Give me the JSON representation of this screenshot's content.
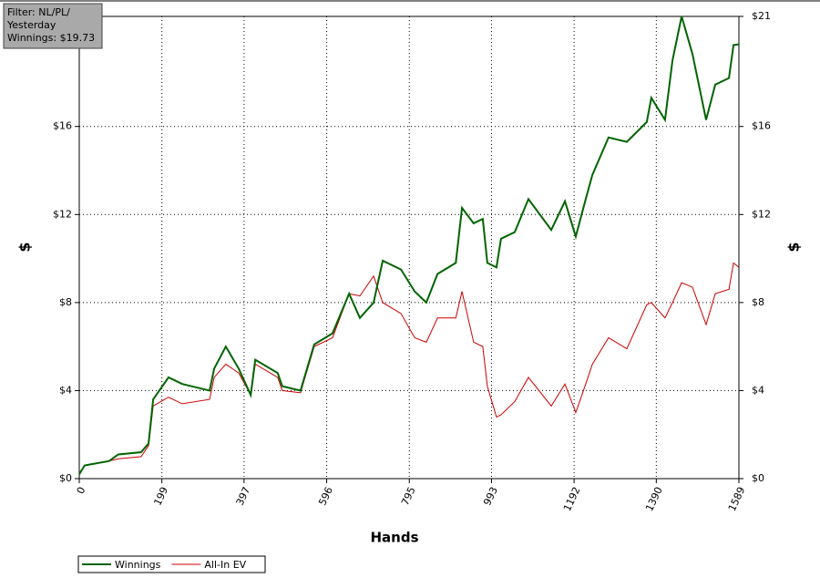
{
  "chart_data": {
    "type": "line",
    "xlabel": "Hands",
    "ylabel": "$",
    "y2label": "$",
    "annotation_lines": [
      "Filter: NL/PL/",
      "Yesterday",
      "Winnings: $19.73"
    ],
    "xlim": [
      0,
      1589
    ],
    "xticks": [
      0,
      199,
      397,
      596,
      795,
      993,
      1192,
      1390,
      1589
    ],
    "ylim": [
      0,
      21
    ],
    "yticks": [
      {
        "value": 0,
        "label": "$0"
      },
      {
        "value": 4,
        "label": "$4"
      },
      {
        "value": 8,
        "label": "$8"
      },
      {
        "value": 12,
        "label": "$12"
      },
      {
        "value": 16,
        "label": "$16"
      },
      {
        "value": 21,
        "label": "$21"
      }
    ],
    "y2lim": [
      0,
      21
    ],
    "y2ticks": [
      {
        "value": 0,
        "label": "$0"
      },
      {
        "value": 4,
        "label": "$4"
      },
      {
        "value": 8,
        "label": "$8"
      },
      {
        "value": 12,
        "label": "$12"
      },
      {
        "value": 16,
        "label": "$16"
      },
      {
        "value": 21,
        "label": "$21"
      }
    ],
    "grid": true,
    "legend": "bottom-left",
    "x": [
      0,
      13,
      72,
      94,
      149,
      167,
      178,
      215,
      248,
      314,
      325,
      353,
      384,
      413,
      424,
      478,
      489,
      533,
      566,
      610,
      650,
      676,
      709,
      731,
      775,
      808,
      836,
      863,
      907,
      922,
      950,
      972,
      983,
      1005,
      1016,
      1049,
      1082,
      1137,
      1170,
      1196,
      1220,
      1236,
      1275,
      1319,
      1367,
      1378,
      1411,
      1429,
      1451,
      1477,
      1510,
      1532,
      1565,
      1576,
      1589
    ],
    "series": [
      {
        "name": "Winnings",
        "color": "#006400",
        "values": [
          0.2,
          0.6,
          0.8,
          1.1,
          1.2,
          1.6,
          3.6,
          4.6,
          4.3,
          4.0,
          5.0,
          6.0,
          5.0,
          3.8,
          5.4,
          4.8,
          4.2,
          4.0,
          6.1,
          6.6,
          8.4,
          7.3,
          8.0,
          9.9,
          9.5,
          8.5,
          8.0,
          9.3,
          9.8,
          12.3,
          11.6,
          11.8,
          9.8,
          9.6,
          10.9,
          11.2,
          12.7,
          11.3,
          12.6,
          11.0,
          12.7,
          13.8,
          15.5,
          15.3,
          16.2,
          17.3,
          16.3,
          19.0,
          21.0,
          19.3,
          16.3,
          17.9,
          18.2,
          19.7,
          19.73
        ]
      },
      {
        "name": "All-In EV",
        "color": "#cc0000",
        "values": [
          0.2,
          0.6,
          0.8,
          0.9,
          1.0,
          1.5,
          3.3,
          3.7,
          3.4,
          3.6,
          4.6,
          5.2,
          4.8,
          3.8,
          5.2,
          4.6,
          4.0,
          3.9,
          6.0,
          6.4,
          8.4,
          8.3,
          9.2,
          8.0,
          7.5,
          6.4,
          6.2,
          7.3,
          7.3,
          8.5,
          6.2,
          6.0,
          4.2,
          2.8,
          2.9,
          3.5,
          4.6,
          3.3,
          4.3,
          3.0,
          4.3,
          5.2,
          6.4,
          5.9,
          7.9,
          8.0,
          7.3,
          8.0,
          8.9,
          8.7,
          7.0,
          8.4,
          8.6,
          9.8,
          9.6
        ]
      }
    ]
  }
}
